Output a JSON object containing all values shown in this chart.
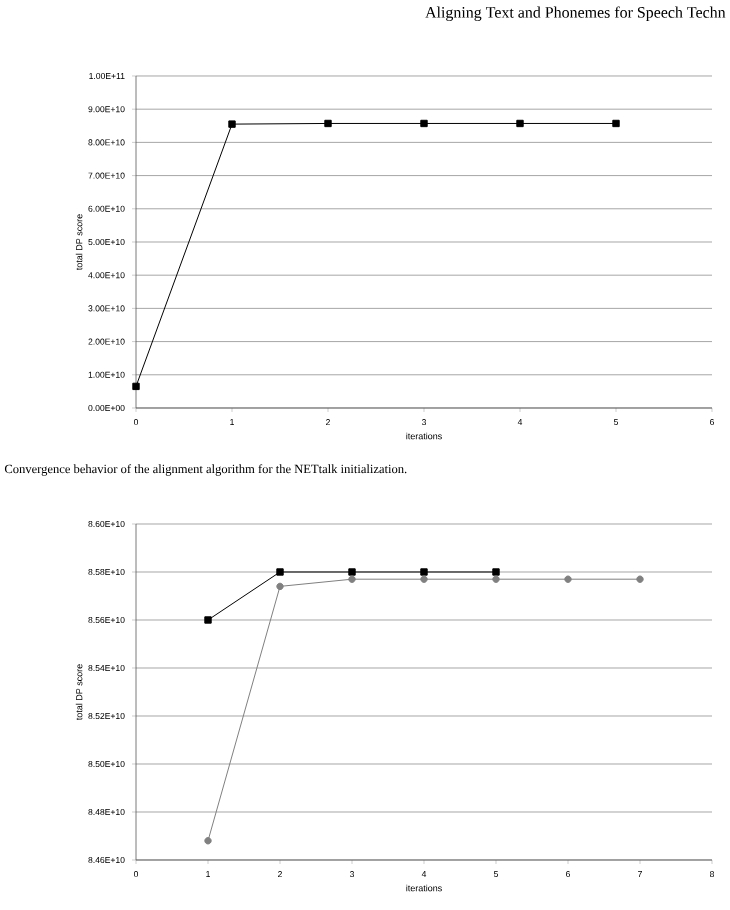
{
  "chart_data": [
    {
      "type": "line",
      "xlabel": "iterations",
      "ylabel": "total DP score",
      "x": [
        0,
        1,
        2,
        3,
        4,
        5
      ],
      "series": [
        {
          "color": "#000000",
          "marker": "square",
          "values": [
            6500000000.0,
            85500000000.0,
            85700000000.0,
            85700000000.0,
            85700000000.0,
            85700000000.0
          ]
        }
      ],
      "xlim": [
        0,
        6
      ],
      "xticks": [
        0,
        1,
        2,
        3,
        4,
        5,
        6
      ],
      "ylim": [
        0,
        100000000000.0
      ],
      "yticks": [
        {
          "value": 0,
          "label": "0.00E+00"
        },
        {
          "value": 10000000000.0,
          "label": "1.00E+10"
        },
        {
          "value": 20000000000.0,
          "label": "2.00E+10"
        },
        {
          "value": 30000000000.0,
          "label": "3.00E+10"
        },
        {
          "value": 40000000000.0,
          "label": "4.00E+10"
        },
        {
          "value": 50000000000.0,
          "label": "5.00E+10"
        },
        {
          "value": 60000000000.0,
          "label": "6.00E+10"
        },
        {
          "value": 70000000000.0,
          "label": "7.00E+10"
        },
        {
          "value": 80000000000.0,
          "label": "8.00E+10"
        },
        {
          "value": 90000000000.0,
          "label": "9.00E+10"
        },
        {
          "value": 100000000000.0,
          "label": "1.00E+11"
        }
      ],
      "grid": "y",
      "annotations": [
        "Aligning Text and Phonemes for Speech Techn",
        "Convergence behavior of the alignment algorithm for the NETtalk initialization."
      ]
    },
    {
      "type": "line",
      "xlabel": "iterations",
      "ylabel": "total DP score",
      "series": [
        {
          "color": "#000000",
          "marker": "square",
          "x": [
            1,
            2,
            3,
            4,
            5
          ],
          "values": [
            85600000000.0,
            85800000000.0,
            85800000000.0,
            85800000000.0,
            85800000000.0
          ]
        },
        {
          "color": "#808080",
          "marker": "circle",
          "x": [
            1,
            2,
            3,
            4,
            5,
            6,
            7
          ],
          "values": [
            84680000000.0,
            85740000000.0,
            85770000000.0,
            85770000000.0,
            85770000000.0,
            85770000000.0,
            85770000000.0
          ]
        }
      ],
      "xlim": [
        0,
        8
      ],
      "xticks": [
        0,
        1,
        2,
        3,
        4,
        5,
        6,
        7,
        8
      ],
      "ylim": [
        84600000000.0,
        86000000000.0
      ],
      "yticks": [
        {
          "value": 84600000000.0,
          "label": "8.46E+10"
        },
        {
          "value": 84800000000.0,
          "label": "8.48E+10"
        },
        {
          "value": 85000000000.0,
          "label": "8.50E+10"
        },
        {
          "value": 85200000000.0,
          "label": "8.52E+10"
        },
        {
          "value": 85400000000.0,
          "label": "8.54E+10"
        },
        {
          "value": 85600000000.0,
          "label": "8.56E+10"
        },
        {
          "value": 85800000000.0,
          "label": "8.58E+10"
        },
        {
          "value": 86000000000.0,
          "label": "8.60E+10"
        }
      ],
      "grid": "y"
    }
  ]
}
